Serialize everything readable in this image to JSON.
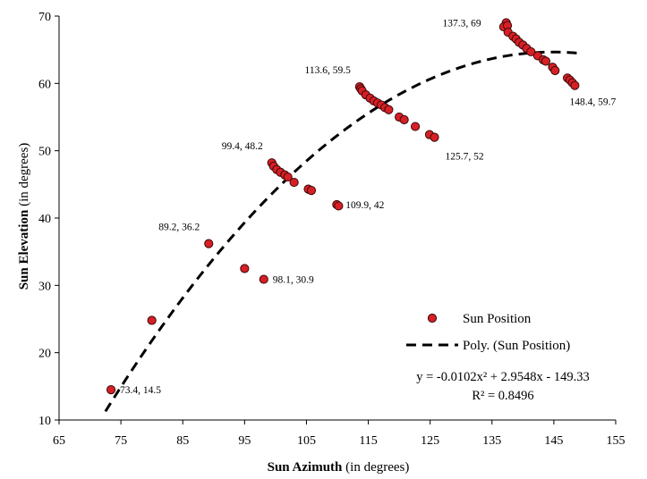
{
  "chart_data": {
    "type": "scatter",
    "xlabel_bold": "Sun Azimuth",
    "xlabel_rest": " (in degrees)",
    "ylabel_bold": "Sun Elevation",
    "ylabel_rest": " (in degrees)",
    "xlim": [
      65,
      155
    ],
    "ylim": [
      10,
      70
    ],
    "xticks": [
      65,
      75,
      85,
      95,
      105,
      115,
      125,
      135,
      145,
      155
    ],
    "yticks": [
      10,
      20,
      30,
      40,
      50,
      60,
      70
    ],
    "grid": false,
    "legend_position": "bottom-right",
    "series": [
      {
        "name": "Sun Position",
        "color": "#d71f26",
        "points": [
          [
            73.4,
            14.5
          ],
          [
            80.0,
            24.8
          ],
          [
            89.2,
            36.2
          ],
          [
            95.0,
            32.5
          ],
          [
            98.1,
            30.9
          ],
          [
            99.4,
            48.2
          ],
          [
            99.7,
            47.7
          ],
          [
            100.2,
            47.2
          ],
          [
            100.8,
            46.8
          ],
          [
            101.5,
            46.4
          ],
          [
            102.0,
            46.1
          ],
          [
            103.0,
            45.3
          ],
          [
            105.3,
            44.3
          ],
          [
            105.8,
            44.1
          ],
          [
            109.9,
            42
          ],
          [
            110.2,
            41.8
          ],
          [
            113.6,
            59.5
          ],
          [
            113.8,
            59.2
          ],
          [
            114.0,
            58.9
          ],
          [
            114.6,
            58.3
          ],
          [
            115.3,
            57.8
          ],
          [
            115.9,
            57.4
          ],
          [
            116.5,
            57.1
          ],
          [
            117.1,
            56.8
          ],
          [
            117.7,
            56.4
          ],
          [
            118.3,
            56.1
          ],
          [
            120.0,
            55.0
          ],
          [
            120.8,
            54.6
          ],
          [
            122.6,
            53.6
          ],
          [
            124.9,
            52.4
          ],
          [
            125.7,
            52
          ],
          [
            137.3,
            69
          ],
          [
            136.9,
            68.4
          ],
          [
            137.5,
            68.6
          ],
          [
            137.6,
            67.6
          ],
          [
            138.4,
            67.0
          ],
          [
            138.9,
            66.6
          ],
          [
            139.4,
            66.1
          ],
          [
            140.0,
            65.7
          ],
          [
            140.6,
            65.2
          ],
          [
            141.3,
            64.7
          ],
          [
            142.4,
            64.1
          ],
          [
            143.3,
            63.5
          ],
          [
            143.7,
            63.3
          ],
          [
            144.8,
            62.4
          ],
          [
            145.2,
            61.9
          ],
          [
            147.2,
            60.8
          ],
          [
            147.6,
            60.5
          ],
          [
            148.0,
            60.1
          ],
          [
            148.4,
            59.7
          ]
        ]
      },
      {
        "name": "Poly. (Sun Position)",
        "type": "trendline",
        "style": "dashed",
        "color": "#000000",
        "coefficients": {
          "a": -0.0102,
          "b": 2.9548,
          "c": -149.33
        },
        "x_range": [
          72.5,
          149
        ]
      }
    ],
    "annotations": [
      {
        "text": "73.4, 14.5",
        "x": 73.4,
        "y": 14.5,
        "pos": "right"
      },
      {
        "text": "89.2, 36.2",
        "x": 89.2,
        "y": 36.2,
        "pos": "above-left"
      },
      {
        "text": "98.1, 30.9",
        "x": 98.1,
        "y": 30.9,
        "pos": "right"
      },
      {
        "text": "99.4, 48.2",
        "x": 99.4,
        "y": 48.2,
        "pos": "above-left"
      },
      {
        "text": "109.9, 42",
        "x": 109.9,
        "y": 42,
        "pos": "right"
      },
      {
        "text": "113.6, 59.5",
        "x": 113.6,
        "y": 59.5,
        "pos": "above-left"
      },
      {
        "text": "125.7, 52",
        "x": 125.7,
        "y": 52,
        "pos": "below-right"
      },
      {
        "text": "137.3, 69",
        "x": 137.3,
        "y": 69,
        "pos": "left"
      },
      {
        "text": "148.4, 59.7",
        "x": 148.4,
        "y": 59.7,
        "pos": "below-left"
      }
    ],
    "equation": "y = -0.0102x² + 2.9548x - 149.33",
    "r_squared": "R² = 0.8496"
  }
}
